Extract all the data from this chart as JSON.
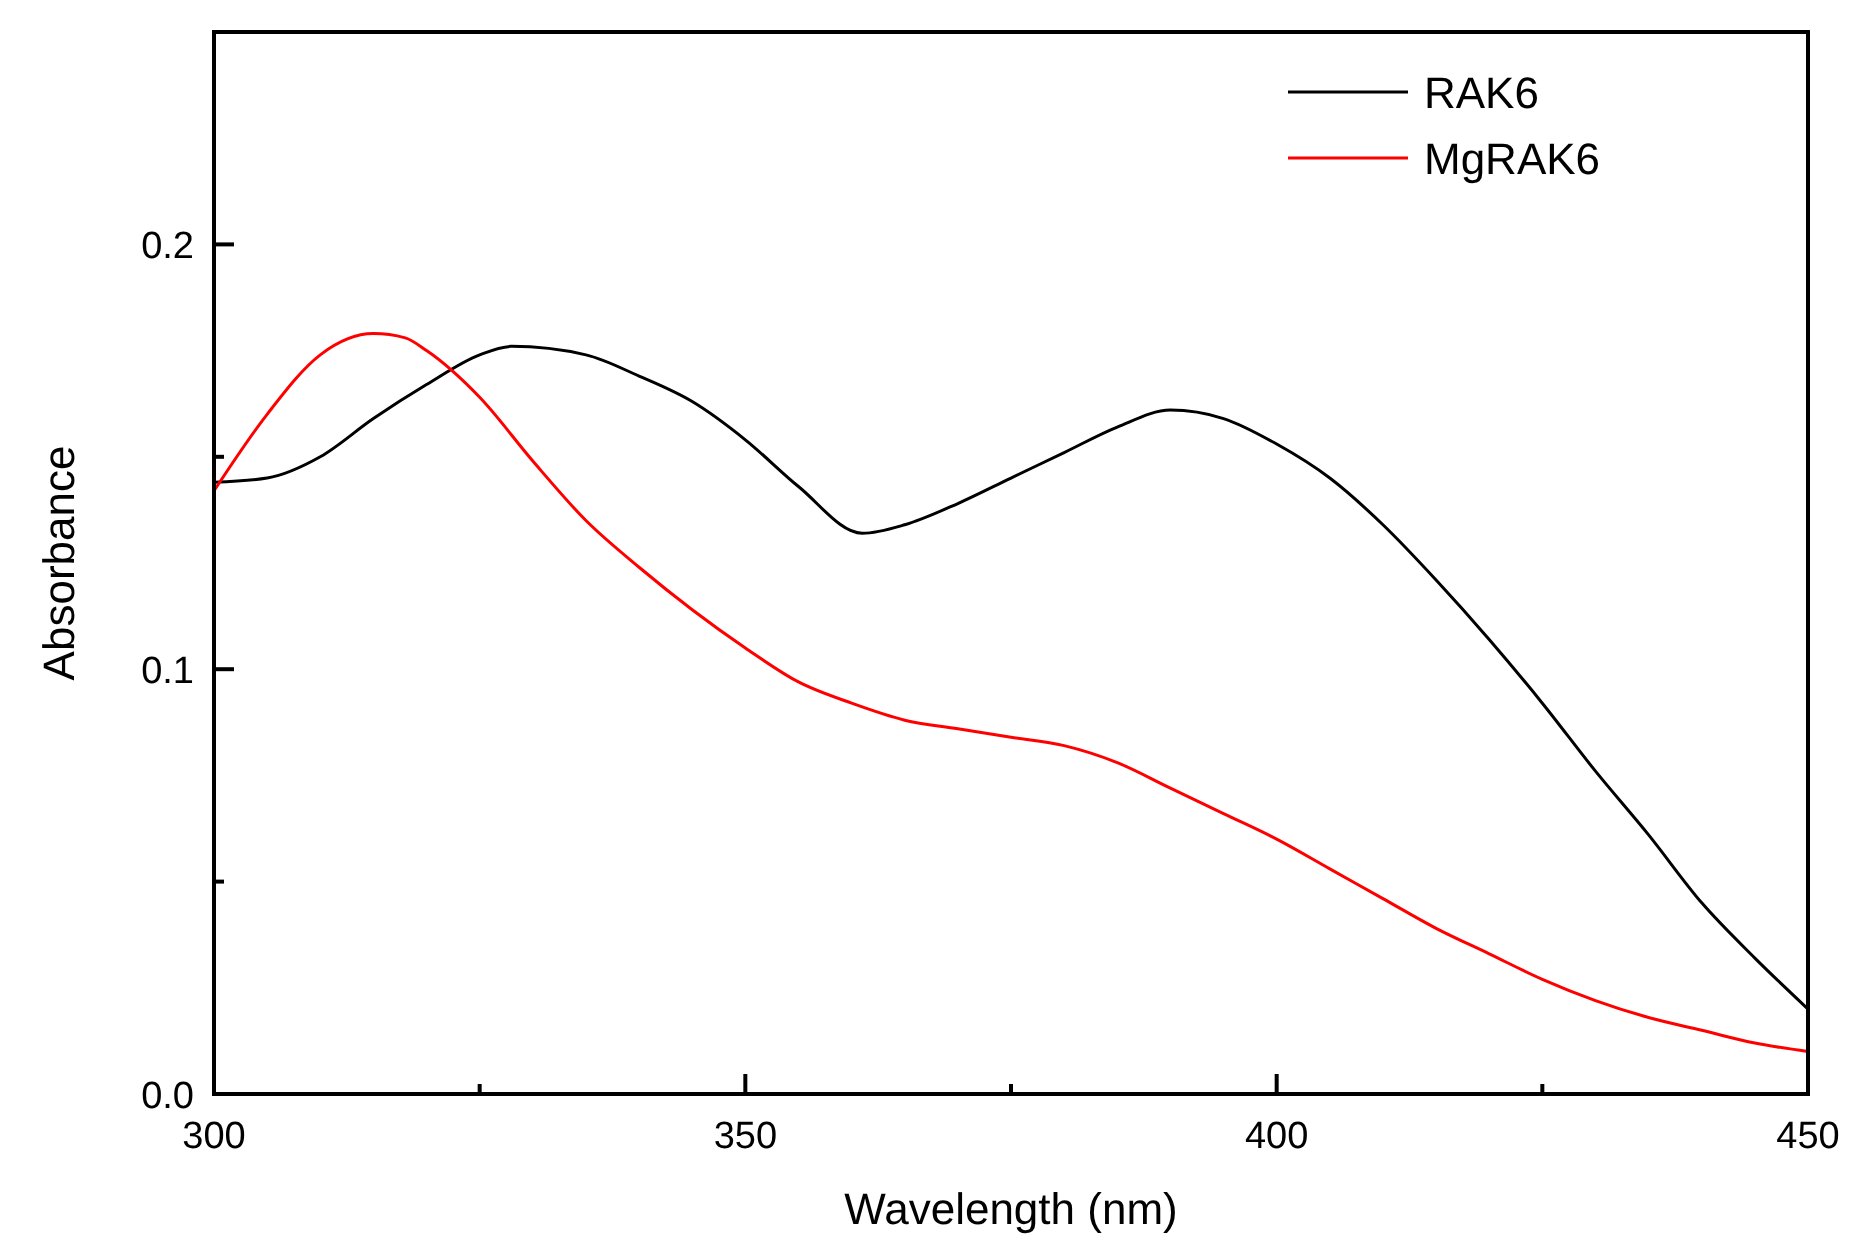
{
  "chart_data": {
    "type": "line",
    "xlabel": "Wavelength (nm)",
    "ylabel": "Absorbance",
    "xlim": [
      300,
      450
    ],
    "ylim": [
      0,
      0.25
    ],
    "xticks": [
      300,
      {
        "value": 325,
        "label": null
      },
      350,
      {
        "value": 375,
        "label": null
      },
      400,
      {
        "value": 425,
        "label": null
      },
      450
    ],
    "yticks": [
      {
        "value": 0,
        "label": "0.0"
      },
      {
        "value": 0.05,
        "label": null
      },
      {
        "value": 0.1,
        "label": "0.1"
      },
      {
        "value": 0.15,
        "label": null
      },
      {
        "value": 0.2,
        "label": "0.2"
      }
    ],
    "grid": false,
    "legend": "top right",
    "marker": "none",
    "line_style": "solid",
    "series": [
      {
        "name": "RAK6",
        "color": "#000000",
        "x": [
          300,
          305,
          310,
          315,
          320,
          325,
          328,
          335,
          340,
          345,
          350,
          355,
          361,
          365,
          370,
          375,
          380,
          385,
          390,
          395,
          400,
          405,
          410,
          415,
          420,
          425,
          430,
          435,
          440,
          445,
          450
        ],
        "values": [
          0.144,
          0.145,
          0.15,
          0.159,
          0.167,
          0.174,
          0.176,
          0.174,
          0.169,
          0.163,
          0.154,
          0.143,
          0.132,
          0.134,
          0.139,
          0.145,
          0.151,
          0.157,
          0.161,
          0.159,
          0.153,
          0.145,
          0.134,
          0.121,
          0.107,
          0.092,
          0.076,
          0.061,
          0.045,
          0.032,
          0.02
        ]
      },
      {
        "name": "MgRAK6",
        "color": "#ff0000",
        "x": [
          300,
          305,
          310,
          315,
          318,
          320,
          325,
          330,
          335,
          340,
          345,
          350,
          355,
          360,
          365,
          370,
          375,
          380,
          385,
          390,
          395,
          400,
          405,
          410,
          415,
          420,
          425,
          430,
          435,
          440,
          445,
          450
        ],
        "values": [
          0.142,
          0.16,
          0.174,
          0.179,
          0.178,
          0.175,
          0.164,
          0.149,
          0.135,
          0.124,
          0.114,
          0.105,
          0.097,
          0.092,
          0.088,
          0.086,
          0.084,
          0.082,
          0.078,
          0.072,
          0.066,
          0.06,
          0.053,
          0.046,
          0.039,
          0.033,
          0.027,
          0.022,
          0.018,
          0.015,
          0.012,
          0.01
        ]
      }
    ]
  }
}
